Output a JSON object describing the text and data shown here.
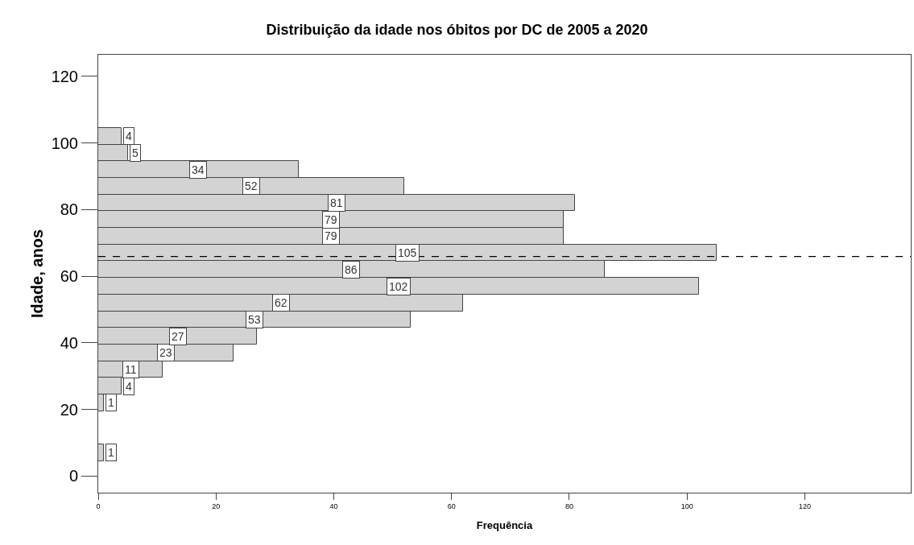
{
  "chart_data": {
    "type": "histogram",
    "orientation": "horizontal",
    "title": "Distribuição da idade nos óbitos por DC de 2005 a 2020",
    "xlabel": "Frequência",
    "ylabel": "Idade, anos",
    "bins": [
      4.5,
      9.5,
      14.5,
      19.5,
      24.5,
      29.5,
      34.5,
      39.5,
      44.5,
      49.5,
      54.5,
      59.5,
      64.5,
      69.5,
      74.5,
      79.5,
      84.5,
      89.5,
      94.5,
      99.5,
      104.5
    ],
    "values": [
      1,
      0,
      0,
      1,
      4,
      11,
      23,
      27,
      53,
      62,
      102,
      86,
      105,
      79,
      79,
      81,
      52,
      34,
      5,
      4
    ],
    "value_labels": [
      "1",
      null,
      null,
      "1",
      "4",
      "11",
      "23",
      "27",
      "53",
      "62",
      "102",
      "86",
      "105",
      "79",
      "79",
      "81",
      "52",
      "34",
      "5",
      "4"
    ],
    "color": "#d3d3d3",
    "xlim": [
      0,
      138
    ],
    "xticks": [
      0,
      20,
      40,
      60,
      80,
      100,
      120
    ],
    "ylim": [
      -5,
      126.5
    ],
    "yticks": [
      0,
      20,
      40,
      60,
      80,
      100,
      120
    ],
    "ref_lines": [
      {
        "axis": "y",
        "value": 65.9,
        "line_style": "dashed",
        "color": "#000000"
      }
    ]
  }
}
